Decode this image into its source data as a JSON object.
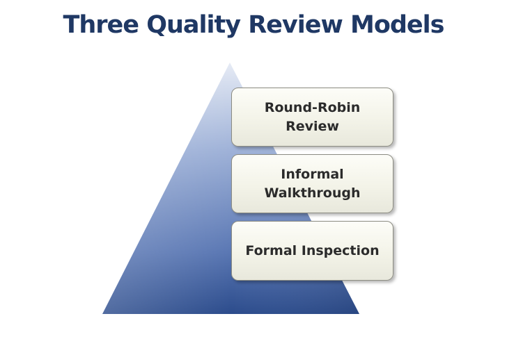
{
  "title": "Three Quality Review Models",
  "colors": {
    "title": "#1f3864",
    "pyramid_top": "#d6deef",
    "pyramid_bottom": "#2e4f8f",
    "box_fill": "#f3f3e8",
    "box_border": "#8c8c82"
  },
  "levels": [
    {
      "label": "Round-Robin Review"
    },
    {
      "label": "Informal Walkthrough"
    },
    {
      "label": "Formal Inspection"
    }
  ]
}
